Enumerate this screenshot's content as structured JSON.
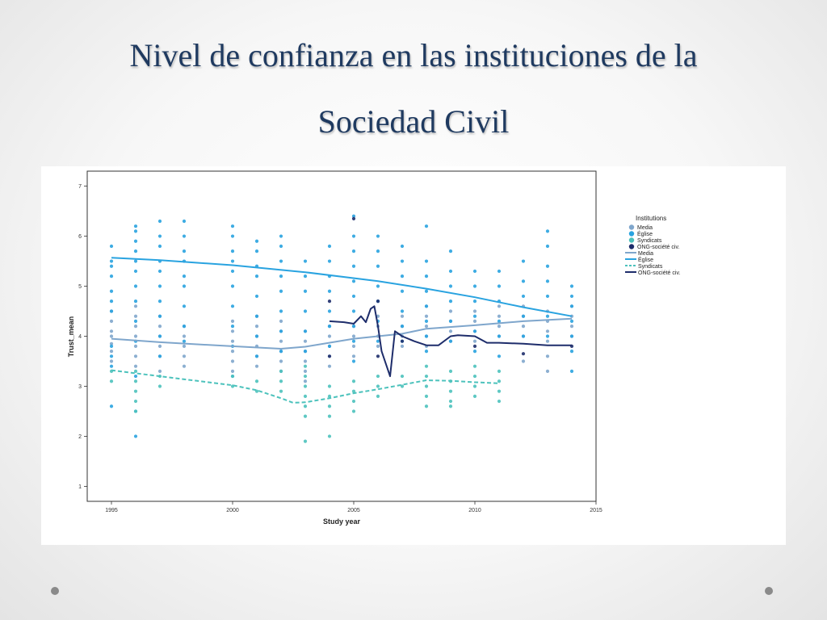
{
  "slide": {
    "title_line1": "Nivel de confianza en las instituciones de la",
    "title_line2": "Sociedad Civil"
  },
  "chart_data": {
    "type": "scatter",
    "title": "",
    "xlabel": "Study year",
    "ylabel": "Trust_mean",
    "xlim": [
      1994,
      2015
    ],
    "ylim": [
      0.7,
      7.3
    ],
    "xticks": [
      1995,
      2000,
      2005,
      2010,
      2015
    ],
    "yticks": [
      1,
      2,
      3,
      4,
      5,
      6,
      7
    ],
    "grid": false,
    "legend": {
      "title": "Institutions",
      "placement": "right",
      "point_entries": [
        "Media",
        "Église",
        "Syndicats",
        "ONG-société civ."
      ],
      "line_entries": [
        "Media",
        "Église",
        "Syndicats",
        "ONG-société civ."
      ]
    },
    "series": [
      {
        "name": "Media",
        "color": "#7fa6cc",
        "line_style": "solid",
        "fit_line": {
          "x": [
            1995,
            1997,
            2000,
            2002,
            2003,
            2005,
            2006,
            2007,
            2008,
            2010,
            2012,
            2014
          ],
          "y": [
            3.95,
            3.88,
            3.8,
            3.75,
            3.79,
            3.95,
            4.0,
            4.05,
            4.15,
            4.22,
            4.3,
            4.35
          ]
        },
        "points": [
          {
            "x": 1995,
            "y": [
              3.5,
              3.7,
              3.85,
              4.0,
              4.1,
              4.3,
              4.5
            ]
          },
          {
            "x": 1996,
            "y": [
              3.4,
              3.6,
              3.8,
              4.0,
              4.2,
              4.4,
              4.6
            ]
          },
          {
            "x": 1997,
            "y": [
              3.3,
              3.6,
              3.8,
              4.0,
              4.2,
              4.4
            ]
          },
          {
            "x": 1998,
            "y": [
              3.4,
              3.6,
              3.8,
              4.0,
              4.2
            ]
          },
          {
            "x": 2000,
            "y": [
              3.3,
              3.5,
              3.7,
              3.9,
              4.1,
              4.3
            ]
          },
          {
            "x": 2001,
            "y": [
              3.4,
              3.6,
              3.8,
              4.0,
              4.2,
              4.4
            ]
          },
          {
            "x": 2002,
            "y": [
              3.3,
              3.5,
              3.7,
              3.9,
              4.1,
              4.3
            ]
          },
          {
            "x": 2003,
            "y": [
              3.1,
              3.3,
              3.5,
              3.7,
              3.9,
              4.1
            ]
          },
          {
            "x": 2004,
            "y": [
              3.4,
              3.6,
              3.8,
              4.0,
              4.2
            ]
          },
          {
            "x": 2005,
            "y": [
              3.6,
              3.8,
              4.0,
              4.2
            ]
          },
          {
            "x": 2006,
            "y": [
              3.8,
              4.0,
              4.2,
              4.4
            ]
          },
          {
            "x": 2007,
            "y": [
              3.8,
              4.0,
              4.2,
              4.4
            ]
          },
          {
            "x": 2008,
            "y": [
              3.8,
              4.0,
              4.2,
              4.4,
              4.6
            ]
          },
          {
            "x": 2009,
            "y": [
              3.9,
              4.1,
              4.3,
              4.5
            ]
          },
          {
            "x": 2010,
            "y": [
              3.9,
              4.1,
              4.3,
              4.5
            ]
          },
          {
            "x": 2011,
            "y": [
              4.0,
              4.2,
              4.4,
              4.6
            ]
          },
          {
            "x": 2012,
            "y": [
              3.5,
              4.0,
              4.2,
              4.4,
              4.6
            ]
          },
          {
            "x": 2013,
            "y": [
              3.3,
              3.6,
              3.9,
              4.1,
              4.3,
              4.5
            ]
          },
          {
            "x": 2014,
            "y": [
              4.0,
              4.2,
              4.4,
              4.6
            ]
          }
        ]
      },
      {
        "name": "Église",
        "color": "#29a3e0",
        "line_style": "solid",
        "fit_line": {
          "x": [
            1995,
            1997,
            2000,
            2003,
            2006,
            2008,
            2010,
            2012,
            2014
          ],
          "y": [
            5.57,
            5.52,
            5.42,
            5.28,
            5.1,
            4.95,
            4.78,
            4.58,
            4.4
          ]
        },
        "points": [
          {
            "x": 1995,
            "y": [
              5.8,
              5.5,
              5.4,
              5.2,
              4.9,
              4.7,
              4.5,
              3.8,
              3.6,
              3.4,
              2.6
            ]
          },
          {
            "x": 1996,
            "y": [
              6.2,
              6.1,
              5.9,
              5.7,
              5.5,
              5.3,
              5.0,
              4.7,
              4.3,
              3.9,
              3.2,
              2.5,
              2.0
            ]
          },
          {
            "x": 1997,
            "y": [
              6.3,
              6.0,
              5.8,
              5.5,
              5.3,
              5.0,
              4.7,
              4.4,
              4.0,
              3.6
            ]
          },
          {
            "x": 1998,
            "y": [
              6.3,
              6.0,
              5.7,
              5.5,
              5.2,
              5.0,
              4.6,
              4.2,
              3.9
            ]
          },
          {
            "x": 2000,
            "y": [
              6.2,
              6.0,
              5.7,
              5.5,
              5.3,
              5.0,
              4.6,
              4.2,
              3.8,
              3.2
            ]
          },
          {
            "x": 2001,
            "y": [
              5.9,
              5.7,
              5.4,
              5.2,
              4.8,
              4.4,
              4.0,
              3.6
            ]
          },
          {
            "x": 2002,
            "y": [
              6.0,
              5.8,
              5.5,
              5.2,
              4.9,
              4.5,
              4.1,
              3.7
            ]
          },
          {
            "x": 2003,
            "y": [
              5.5,
              5.2,
              4.9,
              4.5,
              4.1,
              3.7
            ]
          },
          {
            "x": 2004,
            "y": [
              5.8,
              5.5,
              5.2,
              4.9,
              4.5,
              4.2,
              3.8
            ]
          },
          {
            "x": 2005,
            "y": [
              6.4,
              6.0,
              5.7,
              5.4,
              5.1,
              4.8,
              4.5,
              4.2,
              3.9,
              3.5
            ]
          },
          {
            "x": 2006,
            "y": [
              6.0,
              5.7,
              5.4,
              5.0,
              4.7,
              4.3,
              3.9
            ]
          },
          {
            "x": 2007,
            "y": [
              5.8,
              5.5,
              5.2,
              4.9,
              4.5,
              4.2,
              3.9
            ]
          },
          {
            "x": 2008,
            "y": [
              6.2,
              5.5,
              5.2,
              4.9,
              4.6,
              4.3,
              4.0,
              3.7
            ]
          },
          {
            "x": 2009,
            "y": [
              5.7,
              5.3,
              5.0,
              4.7,
              4.3,
              3.9
            ]
          },
          {
            "x": 2010,
            "y": [
              5.3,
              5.0,
              4.7,
              4.4,
              4.1,
              3.7
            ]
          },
          {
            "x": 2011,
            "y": [
              5.3,
              5.0,
              4.7,
              4.3,
              4.0,
              3.6
            ]
          },
          {
            "x": 2012,
            "y": [
              5.5,
              5.1,
              4.8,
              4.4,
              4.0
            ]
          },
          {
            "x": 2013,
            "y": [
              6.1,
              5.8,
              5.4,
              5.1,
              4.8,
              4.4,
              4.0
            ]
          },
          {
            "x": 2014,
            "y": [
              5.0,
              4.8,
              4.6,
              4.3,
              4.0,
              3.7,
              3.3
            ]
          }
        ]
      },
      {
        "name": "Syndicats",
        "color": "#4cc2bc",
        "line_style": "dashed",
        "fit_line": {
          "x": [
            1995,
            1997,
            2000,
            2001,
            2002,
            2002.5,
            2003,
            2004,
            2005,
            2006,
            2007,
            2008,
            2009,
            2010,
            2011
          ],
          "y": [
            3.32,
            3.2,
            3.02,
            2.92,
            2.76,
            2.67,
            2.68,
            2.76,
            2.86,
            2.94,
            3.03,
            3.12,
            3.11,
            3.08,
            3.06
          ]
        },
        "points": [
          {
            "x": 1995,
            "y": [
              3.3,
              3.1
            ]
          },
          {
            "x": 1996,
            "y": [
              3.3,
              3.1,
              2.9,
              2.7,
              2.5
            ]
          },
          {
            "x": 1997,
            "y": [
              3.2,
              3.0
            ]
          },
          {
            "x": 2000,
            "y": [
              3.2,
              3.0
            ]
          },
          {
            "x": 2001,
            "y": [
              3.1,
              2.9
            ]
          },
          {
            "x": 2002,
            "y": [
              3.3,
              3.1,
              2.9
            ]
          },
          {
            "x": 2003,
            "y": [
              3.4,
              3.2,
              3.0,
              2.8,
              2.6,
              2.4,
              1.9
            ]
          },
          {
            "x": 2004,
            "y": [
              3.0,
              2.8,
              2.6,
              2.4,
              2.0
            ]
          },
          {
            "x": 2005,
            "y": [
              3.1,
              2.9,
              2.7,
              2.5
            ]
          },
          {
            "x": 2006,
            "y": [
              3.2,
              3.0,
              2.8
            ]
          },
          {
            "x": 2007,
            "y": [
              3.2,
              3.0
            ]
          },
          {
            "x": 2008,
            "y": [
              3.4,
              3.2,
              3.0,
              2.8,
              2.6
            ]
          },
          {
            "x": 2009,
            "y": [
              3.3,
              3.1,
              2.9,
              2.7,
              2.6
            ]
          },
          {
            "x": 2010,
            "y": [
              3.4,
              3.2,
              3.0,
              2.8
            ]
          },
          {
            "x": 2011,
            "y": [
              3.3,
              3.1,
              2.9,
              2.7
            ]
          }
        ]
      },
      {
        "name": "ONG-société civ.",
        "color": "#1e2d6b",
        "line_style": "solid",
        "fit_line": {
          "x": [
            2004,
            2004.6,
            2005,
            2005.3,
            2005.5,
            2005.7,
            2005.85,
            2006,
            2006.15,
            2006.5,
            2006.7,
            2007,
            2007.5,
            2008,
            2008.5,
            2009,
            2009.3,
            2010,
            2010.5,
            2011,
            2012,
            2013,
            2014
          ],
          "y": [
            4.3,
            4.28,
            4.25,
            4.4,
            4.28,
            4.55,
            4.6,
            4.2,
            3.7,
            3.2,
            4.1,
            4.0,
            3.9,
            3.82,
            3.82,
            4.0,
            4.02,
            4.0,
            3.87,
            3.87,
            3.85,
            3.82,
            3.82
          ]
        },
        "points": [
          {
            "x": 2004,
            "y": [
              4.7,
              3.6
            ]
          },
          {
            "x": 2005,
            "y": [
              6.35
            ]
          },
          {
            "x": 2006,
            "y": [
              4.7,
              3.6
            ]
          },
          {
            "x": 2007,
            "y": [
              3.9
            ]
          },
          {
            "x": 2010,
            "y": [
              3.8
            ]
          },
          {
            "x": 2012,
            "y": [
              3.65
            ]
          },
          {
            "x": 2014,
            "y": [
              3.8
            ]
          }
        ]
      }
    ]
  }
}
